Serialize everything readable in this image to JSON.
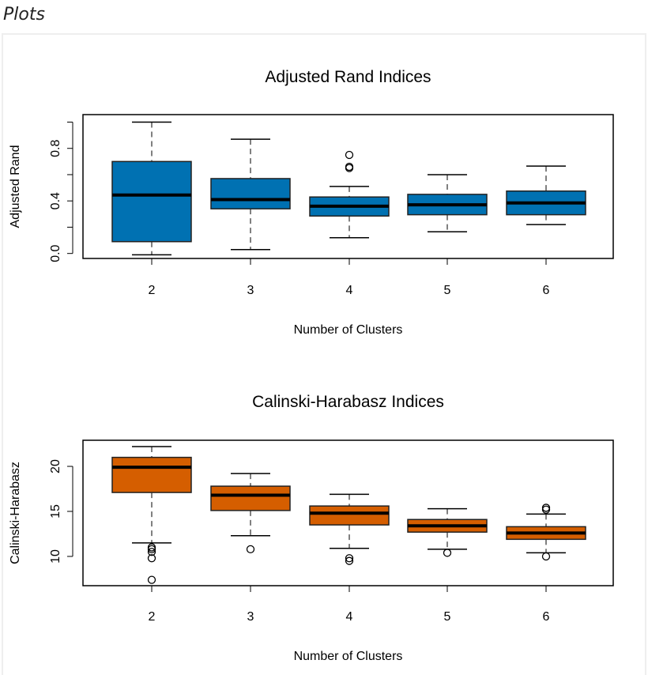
{
  "header": {
    "title": "Plots"
  },
  "chart_data": [
    {
      "type": "box",
      "title": "Adjusted Rand Indices",
      "xlabel": "Number of Clusters",
      "ylabel": "Adjusted Rand",
      "ylim": [
        -0.038,
        1.057
      ],
      "yticks": [
        0.0,
        0.2,
        0.4,
        0.6,
        0.8,
        1.0
      ],
      "ytick_labels": [
        {
          "v": 0.0,
          "label": "0.0"
        },
        {
          "v": 0.4,
          "label": "0.4"
        },
        {
          "v": 0.8,
          "label": "0.8"
        }
      ],
      "categories": [
        "2",
        "3",
        "4",
        "5",
        "6"
      ],
      "color": "#0071B2",
      "boxes": [
        {
          "min": -0.01,
          "q1": 0.09,
          "median": 0.445,
          "q3": 0.7,
          "max": 1.0,
          "outliers": []
        },
        {
          "min": 0.03,
          "q1": 0.34,
          "median": 0.41,
          "q3": 0.57,
          "max": 0.87,
          "outliers": []
        },
        {
          "min": 0.12,
          "q1": 0.285,
          "median": 0.36,
          "q3": 0.43,
          "max": 0.51,
          "outliers": [
            0.65,
            0.66,
            0.75
          ]
        },
        {
          "min": 0.165,
          "q1": 0.295,
          "median": 0.37,
          "q3": 0.45,
          "max": 0.6,
          "outliers": []
        },
        {
          "min": 0.22,
          "q1": 0.295,
          "median": 0.385,
          "q3": 0.475,
          "max": 0.665,
          "outliers": []
        }
      ]
    },
    {
      "type": "box",
      "title": "Calinski-Harabasz Indices",
      "xlabel": "Number of Clusters",
      "ylabel": "Calinski-Harabasz",
      "ylim": [
        6.75,
        22.9
      ],
      "yticks": [
        10,
        15,
        20
      ],
      "ytick_labels": [
        {
          "v": 10,
          "label": "10"
        },
        {
          "v": 15,
          "label": "15"
        },
        {
          "v": 20,
          "label": "20"
        }
      ],
      "categories": [
        "2",
        "3",
        "4",
        "5",
        "6"
      ],
      "color": "#D55E00",
      "boxes": [
        {
          "min": 11.5,
          "q1": 17.1,
          "median": 19.9,
          "q3": 21.0,
          "max": 22.2,
          "outliers": [
            11.0,
            10.8,
            10.5,
            9.8,
            7.4
          ]
        },
        {
          "min": 12.3,
          "q1": 15.1,
          "median": 16.8,
          "q3": 17.8,
          "max": 19.2,
          "outliers": [
            10.8
          ]
        },
        {
          "min": 10.9,
          "q1": 13.5,
          "median": 14.8,
          "q3": 15.6,
          "max": 16.9,
          "outliers": [
            9.8,
            9.5
          ]
        },
        {
          "min": 10.8,
          "q1": 12.7,
          "median": 13.4,
          "q3": 14.1,
          "max": 15.3,
          "outliers": [
            10.4
          ]
        },
        {
          "min": 10.4,
          "q1": 11.9,
          "median": 12.6,
          "q3": 13.3,
          "max": 14.7,
          "outliers": [
            15.4,
            15.2,
            10.0
          ]
        }
      ]
    }
  ]
}
